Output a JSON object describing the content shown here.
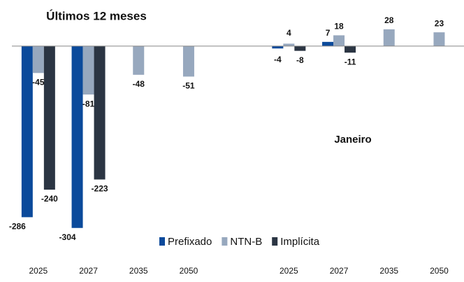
{
  "chart_data": {
    "type": "bar",
    "title": "Últimos 12 meses",
    "annotation": "Janeiro",
    "categories": [
      "2025",
      "2027",
      "2035",
      "2050",
      null,
      "2025",
      "2027",
      "2035",
      "2050"
    ],
    "series": [
      {
        "name": "Prefixado",
        "color": "#0b4a9b",
        "values": [
          -286,
          -304,
          null,
          null,
          null,
          -4,
          7,
          null,
          null
        ]
      },
      {
        "name": "NTN-B",
        "color": "#97a8be",
        "values": [
          -45,
          -81,
          -48,
          -51,
          null,
          4,
          18,
          28,
          23
        ]
      },
      {
        "name": "Implícita",
        "color": "#2b3543",
        "values": [
          -240,
          -223,
          null,
          null,
          null,
          -8,
          -11,
          null,
          null
        ]
      }
    ],
    "ylim": [
      -330,
      77
    ],
    "legend": "bottom"
  }
}
